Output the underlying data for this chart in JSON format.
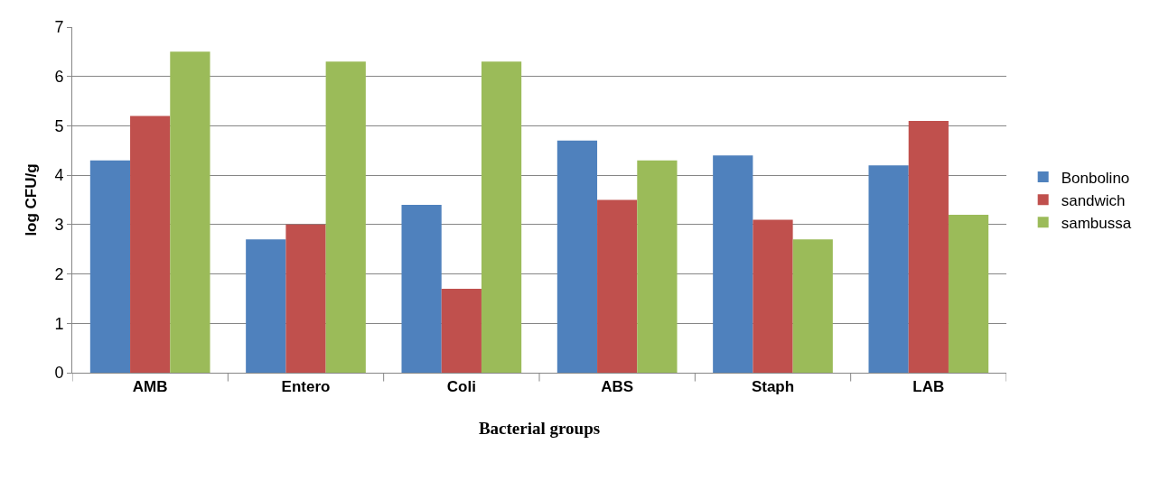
{
  "chart_data": {
    "type": "bar",
    "xlabel": "Bacterial groups",
    "ylabel": "log CFU/g",
    "categories": [
      "AMB",
      "Entero",
      "Coli",
      "ABS",
      "Staph",
      "LAB"
    ],
    "series": [
      {
        "name": "Bonbolino",
        "color": "#4f81bd",
        "values": [
          4.3,
          2.7,
          3.4,
          4.7,
          4.4,
          4.2
        ]
      },
      {
        "name": "sandwich",
        "color": "#c0504d",
        "values": [
          5.2,
          3.0,
          1.7,
          3.5,
          3.1,
          5.1
        ]
      },
      {
        "name": "sambussa",
        "color": "#9bbb59",
        "values": [
          6.5,
          6.3,
          6.3,
          4.3,
          2.7,
          3.2
        ]
      }
    ],
    "ylim": [
      0,
      7
    ],
    "yticks": [
      0,
      1,
      2,
      3,
      4,
      5,
      6,
      7
    ],
    "grid": "y",
    "legend": "right"
  }
}
